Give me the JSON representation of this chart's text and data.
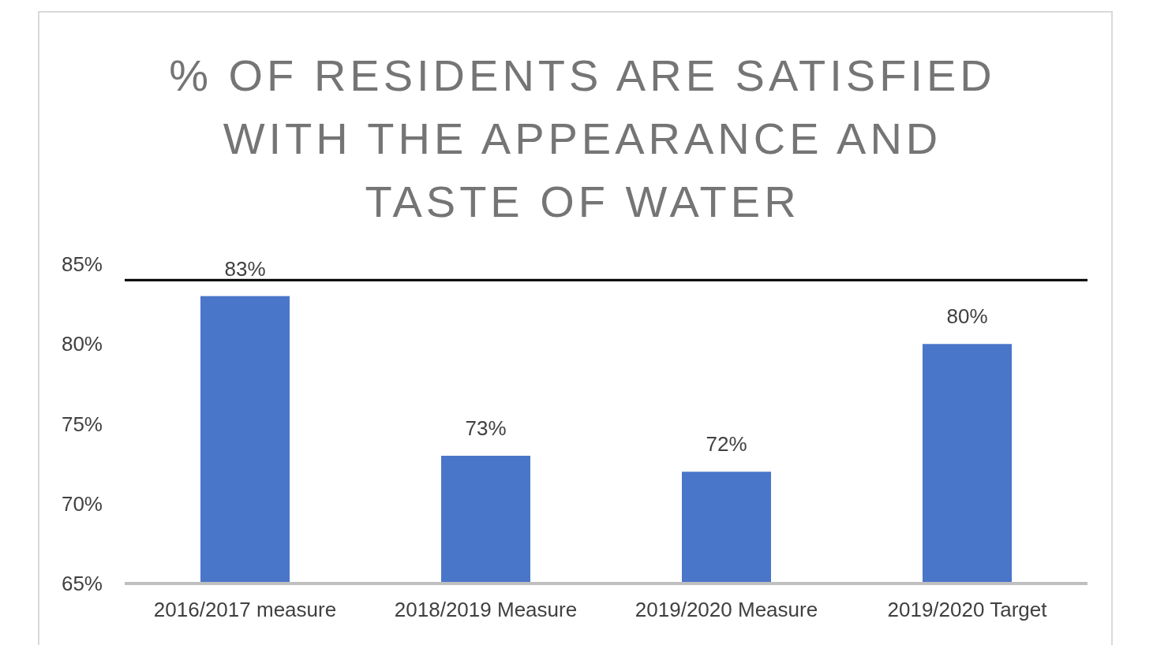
{
  "chart_data": {
    "type": "bar",
    "title": "% OF RESIDENTS ARE SATISFIED WITH THE APPEARANCE AND TASTE OF WATER",
    "categories": [
      "2016/2017 measure",
      "2018/2019 Measure",
      "2019/2020 Measure",
      "2019/2020 Target"
    ],
    "values": [
      83,
      73,
      72,
      80
    ],
    "color": "#4a76c9",
    "value_labels": [
      "83%",
      "73%",
      "72%",
      "80%"
    ],
    "ylim": [
      65,
      85
    ],
    "yticks": [
      {
        "value": 65,
        "label": "65%"
      },
      {
        "value": 70,
        "label": "70%"
      },
      {
        "value": 75,
        "label": "75%"
      },
      {
        "value": 80,
        "label": "80%"
      },
      {
        "value": 85,
        "label": "85%"
      }
    ],
    "ref_lines": [
      {
        "axis": "y",
        "value": 84,
        "color": "#000000"
      }
    ],
    "grid": false,
    "legend": false
  }
}
